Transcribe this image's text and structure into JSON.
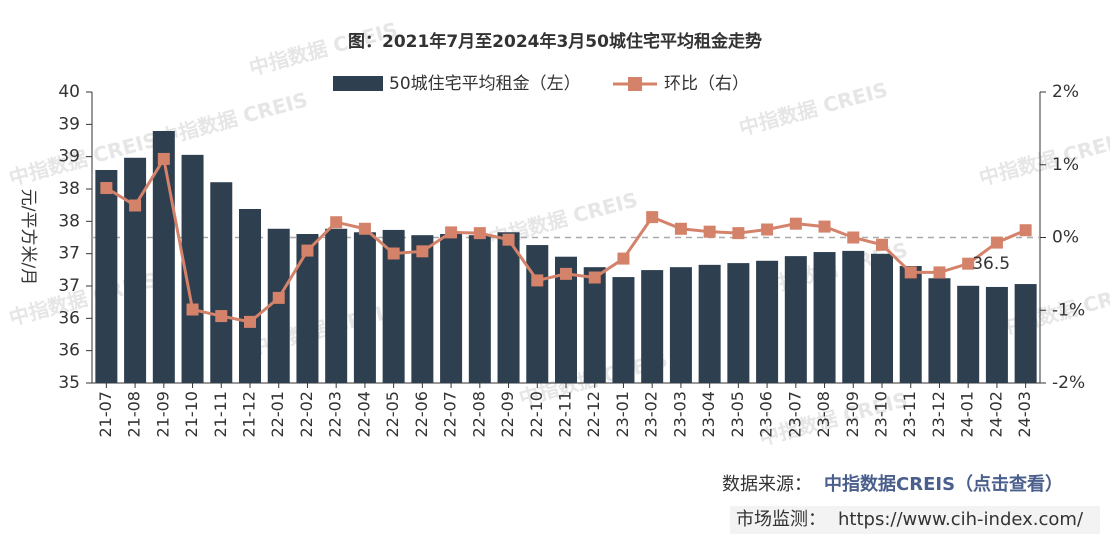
{
  "chart_data": {
    "type": "bar_line",
    "title": "图：2021年7月至2024年3月50城住宅平均租金走势",
    "y_label": "元/平方米/月",
    "categories": [
      "21-07",
      "21-08",
      "21-09",
      "21-10",
      "21-11",
      "21-12",
      "22-01",
      "22-02",
      "22-03",
      "22-04",
      "22-05",
      "22-06",
      "22-07",
      "22-08",
      "22-09",
      "22-10",
      "22-11",
      "22-12",
      "23-01",
      "23-02",
      "23-03",
      "23-04",
      "23-05",
      "23-06",
      "23-07",
      "23-08",
      "23-09",
      "23-10",
      "23-11",
      "23-12",
      "24-01",
      "24-02",
      "24-03"
    ],
    "series": [
      {
        "name": "50城住宅平均租金（左）",
        "type": "bar",
        "color": "#2e3f50",
        "values": [
          38.66,
          38.87,
          39.33,
          38.92,
          38.45,
          37.99,
          37.65,
          37.56,
          37.65,
          37.59,
          37.63,
          37.54,
          37.56,
          37.54,
          37.59,
          37.37,
          37.17,
          36.99,
          36.82,
          36.94,
          36.99,
          37.03,
          37.06,
          37.1,
          37.18,
          37.25,
          37.27,
          37.22,
          37.01,
          36.8,
          36.67,
          36.65,
          36.7
        ]
      },
      {
        "name": "环比（右）",
        "type": "line",
        "axis": "y2",
        "color": "#d4826a",
        "values": [
          0.68,
          0.44,
          1.08,
          -0.99,
          -1.08,
          -1.16,
          -0.83,
          -0.18,
          0.21,
          0.12,
          -0.22,
          -0.19,
          0.07,
          0.06,
          -0.03,
          -0.59,
          -0.5,
          -0.55,
          -0.29,
          0.28,
          0.12,
          0.08,
          0.06,
          0.11,
          0.19,
          0.15,
          0.0,
          -0.1,
          -0.48,
          -0.48,
          -0.36,
          -0.07,
          0.1
        ]
      }
    ],
    "annotation": "36.5",
    "ylim": [
      35,
      40
    ],
    "yticks": [
      35,
      {
        "value": 35.556,
        "label": "36"
      },
      {
        "value": 36.111,
        "label": "36"
      },
      {
        "value": 36.667,
        "label": "37"
      },
      {
        "value": 37.222,
        "label": "37"
      },
      {
        "value": 37.778,
        "label": "38"
      },
      {
        "value": 38.333,
        "label": "38"
      },
      {
        "value": 38.889,
        "label": "39"
      },
      {
        "value": 39.444,
        "label": "39"
      },
      40
    ],
    "y2lim": [
      -2,
      2
    ],
    "y2ticks": [
      {
        "value": -2,
        "label": "-2%"
      },
      {
        "value": -1,
        "label": "-1%"
      },
      {
        "value": 0,
        "label": "0%"
      },
      {
        "value": 1,
        "label": "1%"
      },
      {
        "value": 2,
        "label": "2%"
      }
    ],
    "y2_reference_line": 0,
    "legend": "top"
  },
  "watermark": "中指数据 CREIS",
  "footer": {
    "source_label": "数据来源：",
    "source_link": "中指数据CREIS（点击查看）",
    "monitor_label": "市场监测：",
    "monitor_url": "https://www.cih-index.com/"
  }
}
